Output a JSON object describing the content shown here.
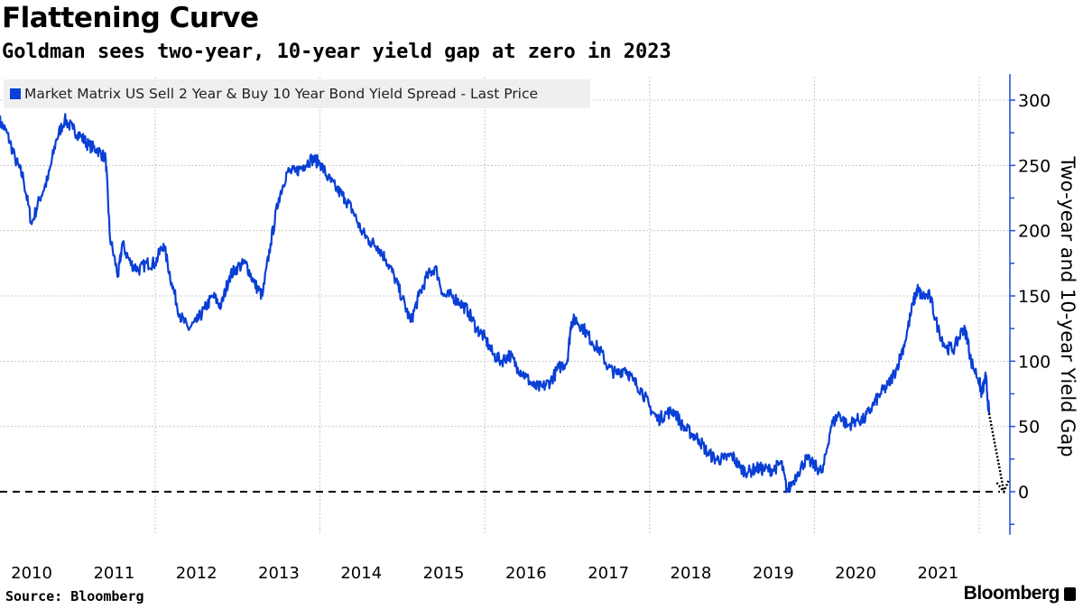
{
  "title": "Flattening Curve",
  "subtitle": "Goldman sees two-year, 10-year yield gap at zero in 2023",
  "source": "Source: Bloomberg",
  "logo": "Bloomberg",
  "chart_data": {
    "type": "line",
    "ylabel": "Two-year and 10-year Yield Gap",
    "ylim": [
      -33,
      320
    ],
    "yticks": [
      0,
      50,
      100,
      150,
      200,
      250,
      300
    ],
    "xlim": [
      2010.1,
      2022.45
    ],
    "xtick_labels": [
      "2010",
      "2011",
      "2012",
      "2013",
      "2014",
      "2015",
      "2016",
      "2017",
      "2018",
      "2019",
      "2020",
      "2021"
    ],
    "grid": true,
    "legend_placement": "top-left",
    "reference_line": {
      "y": 0,
      "style": "dashed",
      "color": "#000000"
    },
    "colors": {
      "series": "#0a3fd6",
      "axis": "#1f4fd0",
      "projection": "#000000"
    },
    "series": [
      {
        "name": "Market Matrix US Sell 2 Year & Buy 10 Year Bond Yield Spread - Last Price",
        "x": [
          2010.1,
          2010.2,
          2010.3,
          2010.4,
          2010.5,
          2010.6,
          2010.7,
          2010.8,
          2010.9,
          2011.0,
          2011.1,
          2011.2,
          2011.3,
          2011.4,
          2011.45,
          2011.55,
          2011.6,
          2011.7,
          2011.8,
          2011.9,
          2012.0,
          2012.1,
          2012.2,
          2012.3,
          2012.4,
          2012.5,
          2012.6,
          2012.7,
          2012.8,
          2012.9,
          2013.0,
          2013.1,
          2013.2,
          2013.3,
          2013.4,
          2013.5,
          2013.6,
          2013.7,
          2013.8,
          2013.9,
          2014.0,
          2014.1,
          2014.2,
          2014.3,
          2014.4,
          2014.5,
          2014.6,
          2014.7,
          2014.8,
          2014.9,
          2015.0,
          2015.1,
          2015.2,
          2015.3,
          2015.4,
          2015.5,
          2015.6,
          2015.7,
          2015.8,
          2015.9,
          2016.0,
          2016.1,
          2016.2,
          2016.3,
          2016.4,
          2016.5,
          2016.6,
          2016.7,
          2016.8,
          2016.9,
          2017.0,
          2017.05,
          2017.1,
          2017.2,
          2017.3,
          2017.4,
          2017.5,
          2017.6,
          2017.7,
          2017.8,
          2017.9,
          2018.0,
          2018.1,
          2018.2,
          2018.3,
          2018.4,
          2018.5,
          2018.6,
          2018.7,
          2018.8,
          2018.9,
          2019.0,
          2019.1,
          2019.2,
          2019.3,
          2019.4,
          2019.5,
          2019.6,
          2019.67,
          2019.8,
          2019.9,
          2020.0,
          2020.1,
          2020.2,
          2020.3,
          2020.4,
          2020.5,
          2020.6,
          2020.7,
          2020.8,
          2020.9,
          2021.0,
          2021.1,
          2021.2,
          2021.25,
          2021.3,
          2021.4,
          2021.5,
          2021.6,
          2021.7,
          2021.8,
          2021.85,
          2021.9,
          2022.0,
          2022.03,
          2022.08,
          2022.12
        ],
        "y": [
          285,
          275,
          255,
          240,
          205,
          225,
          240,
          270,
          285,
          278,
          272,
          265,
          262,
          255,
          195,
          165,
          190,
          175,
          170,
          175,
          175,
          190,
          160,
          135,
          125,
          130,
          140,
          150,
          142,
          165,
          172,
          175,
          160,
          150,
          190,
          225,
          245,
          245,
          250,
          255,
          252,
          240,
          232,
          225,
          215,
          200,
          192,
          188,
          178,
          165,
          148,
          130,
          150,
          165,
          172,
          150,
          150,
          145,
          138,
          125,
          118,
          105,
          100,
          105,
          95,
          88,
          80,
          80,
          85,
          95,
          100,
          130,
          132,
          125,
          115,
          108,
          95,
          90,
          95,
          85,
          78,
          65,
          55,
          60,
          62,
          50,
          45,
          40,
          30,
          25,
          25,
          28,
          18,
          15,
          18,
          17,
          17,
          22,
          0,
          15,
          25,
          20,
          15,
          50,
          60,
          50,
          55,
          55,
          65,
          75,
          82,
          95,
          115,
          145,
          155,
          150,
          150,
          125,
          110,
          110,
          125,
          120,
          100,
          85,
          75,
          88,
          60
        ]
      },
      {
        "name": "projection",
        "x": [
          2022.12,
          2022.3
        ],
        "y": [
          60,
          0
        ]
      }
    ]
  }
}
